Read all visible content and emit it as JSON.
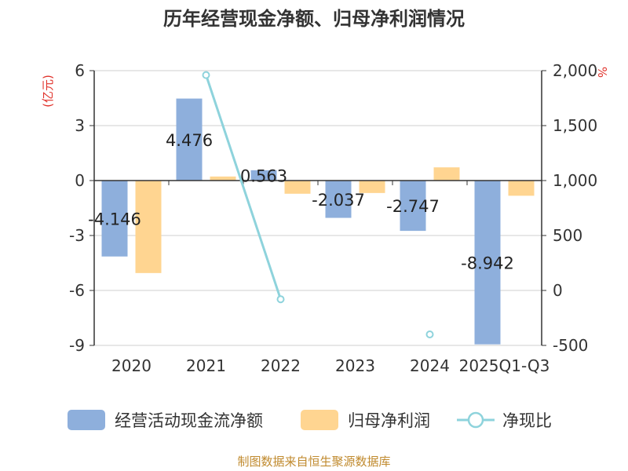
{
  "chart_data": {
    "type": "bar",
    "title": "历年经营现金净额、归母净利润情况",
    "left_unit": "(亿元)",
    "right_unit": "%",
    "categories": [
      "2020",
      "2021",
      "2022",
      "2023",
      "2024",
      "2025Q1-Q3"
    ],
    "y_left": {
      "min": -9,
      "max": 6,
      "ticks": [
        6,
        3,
        0,
        -3,
        -6,
        -9
      ],
      "tick_labels": [
        "6",
        "3",
        "0",
        "-3",
        "-6",
        "-9"
      ]
    },
    "y_right": {
      "min": -500,
      "max": 2000,
      "ticks": [
        2000,
        1500,
        1000,
        500,
        0,
        -500
      ],
      "tick_labels": [
        "2,000",
        "1,500",
        "1,000",
        "500",
        "0",
        "-500"
      ]
    },
    "series": [
      {
        "name": "经营活动现金流净额",
        "type": "bar",
        "axis": "left",
        "color": "#8eafdc",
        "values": [
          -4.146,
          4.476,
          0.563,
          -2.037,
          -2.747,
          -8.942
        ],
        "labels": [
          "-4.146",
          "4.476",
          "0.563",
          "-2.037",
          "-2.747",
          "-8.942"
        ]
      },
      {
        "name": "归母净利润",
        "type": "bar",
        "axis": "left",
        "color": "#ffd591",
        "values": [
          -5.05,
          0.22,
          -0.72,
          -0.68,
          0.72,
          -0.83
        ]
      },
      {
        "name": "净现比",
        "type": "line",
        "axis": "right",
        "color": "#8ed3dc",
        "values": [
          null,
          1960,
          -80,
          null,
          -400,
          null
        ]
      }
    ]
  },
  "source": "制图数据来自恒生聚源数据库"
}
